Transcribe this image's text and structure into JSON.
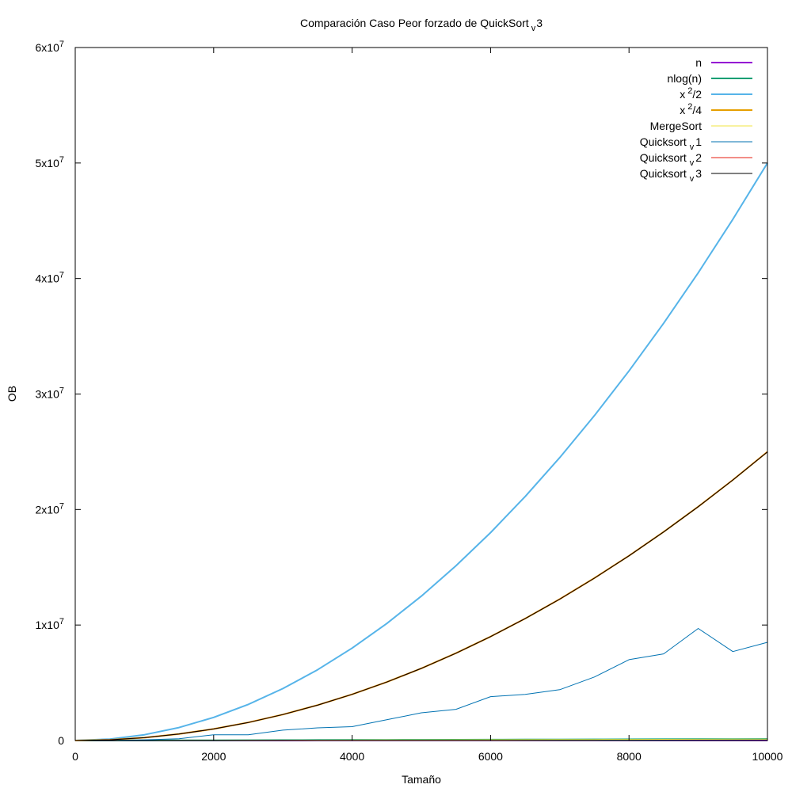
{
  "chart_data": {
    "type": "line",
    "title": {
      "main": "Comparación Caso Peor forzado de QuickSort",
      "sub": "v",
      "tail": "3"
    },
    "xlabel": "Tamaño",
    "ylabel": "OB",
    "xlim": [
      0,
      10000
    ],
    "ylim": [
      0,
      60000000
    ],
    "grid": false,
    "legend_position": "top-right",
    "x_ticks": [
      {
        "value": 0,
        "label": "0"
      },
      {
        "value": 2000,
        "label": "2000"
      },
      {
        "value": 4000,
        "label": "4000"
      },
      {
        "value": 6000,
        "label": "6000"
      },
      {
        "value": 8000,
        "label": "8000"
      },
      {
        "value": 10000,
        "label": "10000"
      }
    ],
    "y_ticks": [
      {
        "value": 0,
        "base": "0",
        "exp": ""
      },
      {
        "value": 10000000,
        "base": "1x10",
        "exp": "7"
      },
      {
        "value": 20000000,
        "base": "2x10",
        "exp": "7"
      },
      {
        "value": 30000000,
        "base": "3x10",
        "exp": "7"
      },
      {
        "value": 40000000,
        "base": "4x10",
        "exp": "7"
      },
      {
        "value": 50000000,
        "base": "5x10",
        "exp": "7"
      },
      {
        "value": 60000000,
        "base": "6x10",
        "exp": "7"
      }
    ],
    "x": [
      0,
      500,
      1000,
      1500,
      2000,
      2500,
      3000,
      3500,
      4000,
      4500,
      5000,
      5500,
      6000,
      6500,
      7000,
      7500,
      8000,
      8500,
      9000,
      9500,
      10000
    ],
    "series": [
      {
        "name": "n",
        "legend": {
          "pre": "n",
          "sup": "",
          "sub": "",
          "post": ""
        },
        "color": "#9400d3",
        "width": 2,
        "values": [
          0,
          500,
          1000,
          1500,
          2000,
          2500,
          3000,
          3500,
          4000,
          4500,
          5000,
          5500,
          6000,
          6500,
          7000,
          7500,
          8000,
          8500,
          9000,
          9500,
          10000
        ]
      },
      {
        "name": "nlog(n)",
        "legend": {
          "pre": "nlog(n)",
          "sup": "",
          "sub": "",
          "post": ""
        },
        "color": "#009e73",
        "width": 2,
        "values": [
          0,
          4483,
          9966,
          15826,
          21932,
          28223,
          34658,
          41219,
          47863,
          54623,
          61438,
          68336,
          75297,
          82320,
          89398,
          96522,
          103695,
          110907,
          118166,
          125465,
          132877
        ]
      },
      {
        "name": "x^2/2",
        "legend": {
          "pre": "x",
          "sup": "2",
          "sub": "",
          "post": "/2"
        },
        "color": "#56b4e9",
        "width": 2,
        "values": [
          0,
          125000,
          500000,
          1125000,
          2000000,
          3125000,
          4500000,
          6125000,
          8000000,
          10125000,
          12500000,
          15125000,
          18000000,
          21125000,
          24500000,
          28125000,
          32000000,
          36125000,
          40500000,
          45125000,
          50000000
        ]
      },
      {
        "name": "x^2/4",
        "legend": {
          "pre": "x",
          "sup": "2",
          "sub": "",
          "post": "/4"
        },
        "color": "#e69f00",
        "width": 2,
        "values": [
          0,
          62500,
          250000,
          562500,
          1000000,
          1562500,
          2250000,
          3062500,
          4000000,
          5062500,
          6250000,
          7562500,
          9000000,
          10562500,
          12250000,
          14062500,
          16000000,
          18062500,
          20250000,
          22562500,
          25000000
        ]
      },
      {
        "name": "MergeSort",
        "legend": {
          "pre": "MergeSort",
          "sup": "",
          "sub": "",
          "post": ""
        },
        "color": "#f0e442",
        "width": 1,
        "values": [
          0,
          4000,
          8700,
          14000,
          19400,
          25000,
          30800,
          36700,
          42800,
          48900,
          55200,
          61500,
          67900,
          74400,
          81000,
          87600,
          94300,
          101000,
          107800,
          114600,
          121500
        ]
      },
      {
        "name": "Quicksort v1",
        "legend": {
          "pre": "Quicksort ",
          "sup": "",
          "sub": "v",
          "post": "1"
        },
        "color": "#0072b2",
        "width": 1,
        "values": [
          0,
          10000,
          60000,
          150000,
          500000,
          500000,
          900000,
          1100000,
          1200000,
          1800000,
          2400000,
          2700000,
          3800000,
          4000000,
          4400000,
          5500000,
          7000000,
          7500000,
          9700000,
          7700000,
          8500000
        ]
      },
      {
        "name": "Quicksort v2",
        "legend": {
          "pre": "Quicksort ",
          "sup": "",
          "sub": "v",
          "post": "2"
        },
        "color": "#e51e10",
        "width": 1,
        "values": [
          0,
          62200,
          249500,
          561800,
          999000,
          1561300,
          2249000,
          3061300,
          3998000,
          5060300,
          6247500,
          7559800,
          8997000,
          10559300,
          12246500,
          14058800,
          15996000,
          18058300,
          20245500,
          22557800,
          24995000
        ]
      },
      {
        "name": "Quicksort v3",
        "legend": {
          "pre": "Quicksort ",
          "sup": "",
          "sub": "v",
          "post": "3"
        },
        "color": "#000000",
        "width": 1,
        "values": [
          0,
          62000,
          249000,
          561000,
          998000,
          1560000,
          2247000,
          3059000,
          3996000,
          5058000,
          6245000,
          7557000,
          8994000,
          10556000,
          12243000,
          14055000,
          15992000,
          18054000,
          20241000,
          22553000,
          24990000
        ]
      }
    ]
  }
}
